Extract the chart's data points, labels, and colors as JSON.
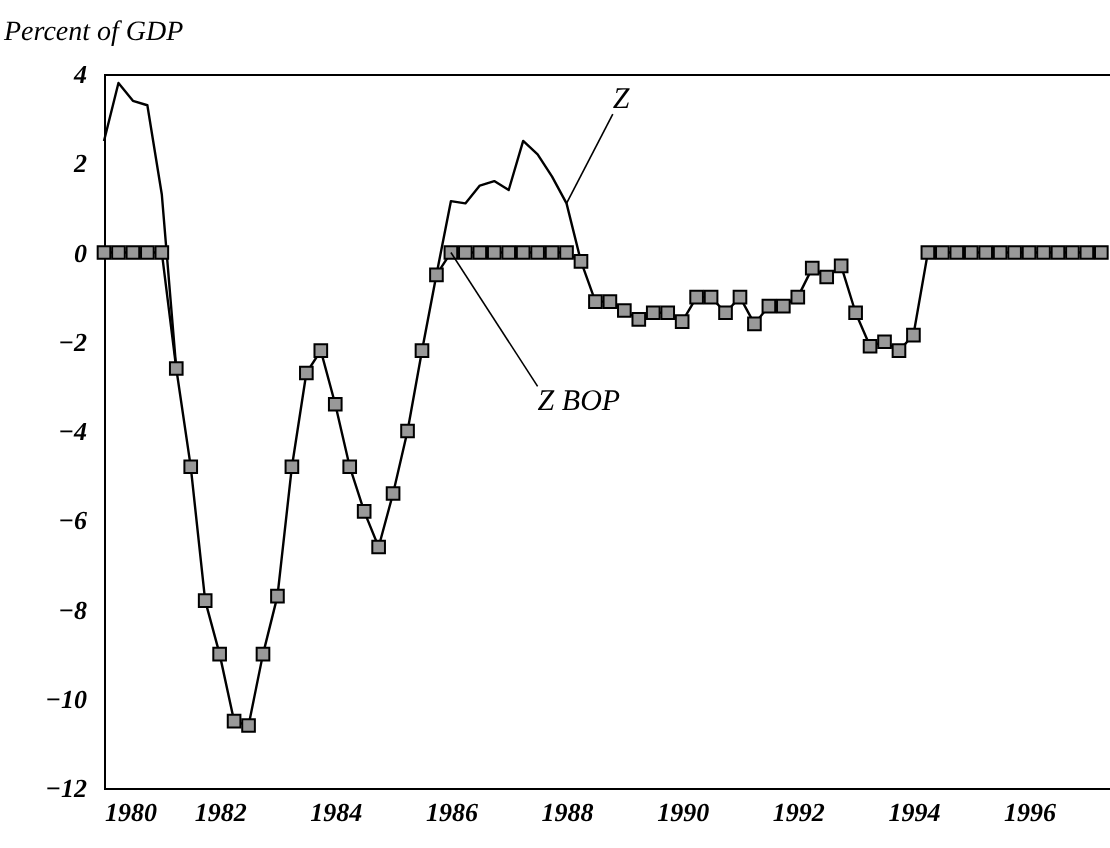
{
  "chart_data": {
    "type": "line",
    "ylabel": "Percent of GDP",
    "legend": false,
    "grid": false,
    "x": [
      1980,
      1980.25,
      1980.5,
      1980.75,
      1981,
      1981.25,
      1981.5,
      1981.75,
      1982,
      1982.25,
      1982.5,
      1982.75,
      1983,
      1983.25,
      1983.5,
      1983.75,
      1984,
      1984.25,
      1984.5,
      1984.75,
      1985,
      1985.25,
      1985.5,
      1985.75,
      1986,
      1986.25,
      1986.5,
      1986.75,
      1987,
      1987.25,
      1987.5,
      1987.75,
      1988,
      1988.25,
      1988.5,
      1988.75,
      1989,
      1989.25,
      1989.5,
      1989.75,
      1990,
      1990.25,
      1990.5,
      1990.75,
      1991,
      1991.25,
      1991.5,
      1991.75,
      1992,
      1992.25,
      1992.5,
      1992.75,
      1993,
      1993.25,
      1993.5,
      1993.75,
      1994,
      1994.25,
      1994.5,
      1994.75,
      1995,
      1995.25,
      1995.5,
      1995.75,
      1996,
      1996.25,
      1996.5,
      1996.75,
      1997,
      1997.25
    ],
    "series": [
      {
        "name": "Z",
        "color": "#000000",
        "marker": "none",
        "values": [
          2.5,
          3.8,
          3.4,
          3.3,
          1.3,
          -2.6,
          null,
          null,
          null,
          null,
          null,
          null,
          null,
          null,
          null,
          null,
          null,
          null,
          null,
          null,
          null,
          null,
          null,
          -0.5,
          1.15,
          1.1,
          1.5,
          1.6,
          1.4,
          2.5,
          2.2,
          1.7,
          1.1,
          -0.2,
          null,
          null,
          null,
          null,
          null,
          null,
          null,
          null,
          null,
          null,
          null,
          null,
          null,
          null,
          null,
          null,
          null,
          null,
          null,
          null,
          null,
          null,
          null,
          null,
          null,
          null,
          null,
          null,
          null,
          null,
          null,
          null,
          null,
          null,
          null,
          null
        ]
      },
      {
        "name": "Z BOP",
        "color": "#000000",
        "marker": "square",
        "values": [
          0,
          0,
          0,
          0,
          0,
          -2.6,
          -4.8,
          -7.8,
          -9.0,
          -10.5,
          -10.6,
          -9.0,
          -7.7,
          -4.8,
          -2.7,
          -2.2,
          -3.4,
          -4.8,
          -5.8,
          -6.6,
          -5.4,
          -4.0,
          -2.2,
          -0.5,
          0,
          0,
          0,
          0,
          0,
          0,
          0,
          0,
          0,
          -0.2,
          -1.1,
          -1.1,
          -1.3,
          -1.5,
          -1.35,
          -1.35,
          -1.55,
          -1.0,
          -1.0,
          -1.35,
          -1.0,
          -1.6,
          -1.2,
          -1.2,
          -1.0,
          -0.35,
          -0.55,
          -0.3,
          -1.35,
          -2.1,
          -2.0,
          -2.2,
          -1.85,
          0,
          0,
          0,
          0,
          0,
          0,
          0,
          0,
          0,
          0,
          0,
          0,
          0
        ]
      }
    ],
    "xlim": [
      1980,
      1997.4
    ],
    "xticks": [
      1980,
      1982,
      1984,
      1986,
      1988,
      1990,
      1992,
      1994,
      1996
    ],
    "ylim": [
      -12,
      4
    ],
    "yticks": [
      -12,
      -10,
      -8,
      -6,
      -4,
      -2,
      0,
      2,
      4
    ],
    "line_style": "solid"
  }
}
